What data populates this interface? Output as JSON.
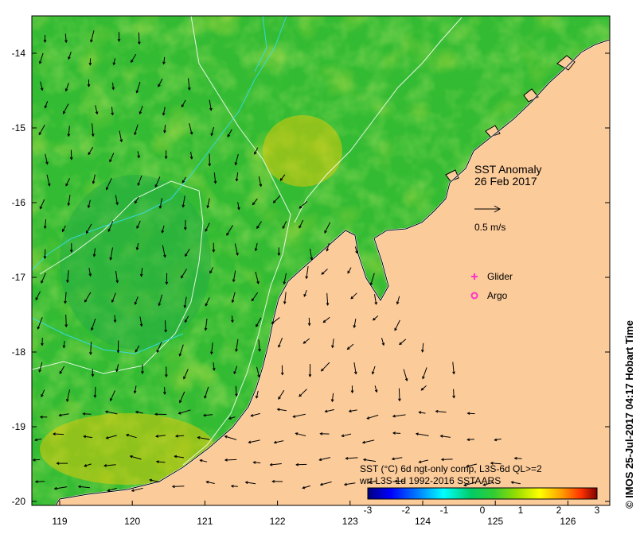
{
  "map": {
    "title": "SST Anomaly",
    "date": "26 Feb 2017",
    "vector_scale_label": "0.5 m/s",
    "credit": "© IMOS 25-Jul-2017 04:17 Hobart Time",
    "lon_ticks": [
      "119",
      "120",
      "121",
      "122",
      "123",
      "124",
      "125",
      "126"
    ],
    "lat_ticks": [
      "-14",
      "-15",
      "-16",
      "-17",
      "-18",
      "-19",
      "-20"
    ],
    "legend": [
      {
        "label": "Glider",
        "color": "#ff33cc"
      },
      {
        "label": "Argo",
        "color": "#ff33cc"
      }
    ],
    "colorbar": {
      "caption_line1": "SST (°C) 6d ngt-only comp, L3S-6d QL>=2",
      "caption_line2": "wrt L3S-1d 1992-2016 SSTAARS",
      "ticks": [
        "-3",
        "-2",
        "-1",
        "0",
        "1",
        "2",
        "3"
      ],
      "colors": [
        "#00007f",
        "#0000ff",
        "#0080ff",
        "#00ffff",
        "#00cc66",
        "#33cc33",
        "#99dd00",
        "#ffff00",
        "#ff9900",
        "#ff3300",
        "#7f0000"
      ]
    },
    "land_color": "#fccb9a",
    "ocean_color": "#33bb33"
  }
}
